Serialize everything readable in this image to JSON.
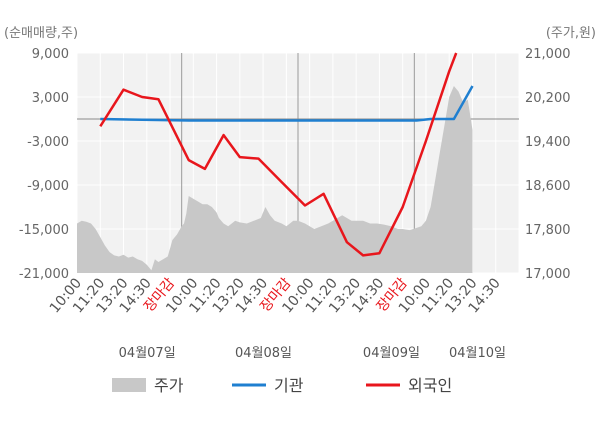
{
  "chart_data": {
    "type": "line",
    "left_axis_label": "(순매매량,주)",
    "right_axis_label": "(주가,원)",
    "left_ticks": [
      "9,000",
      "3,000",
      "-3,000",
      "-9,000",
      "-15,000",
      "-21,000"
    ],
    "left_tick_values": [
      9000,
      3000,
      -3000,
      -9000,
      -15000,
      -21000
    ],
    "right_ticks": [
      "21,000",
      "20,200",
      "19,400",
      "18,600",
      "17,800",
      "17,000"
    ],
    "right_tick_values": [
      21000,
      20200,
      19400,
      18600,
      17800,
      17000
    ],
    "ylim_left": [
      -21000,
      9000
    ],
    "ylim_right": [
      17000,
      21000
    ],
    "x_tick_labels": [
      "10:00",
      "11:20",
      "13:20",
      "14:30",
      "장마감",
      "10:00",
      "11:20",
      "13:20",
      "14:30",
      "장마감",
      "10:00",
      "11:20",
      "13:20",
      "14:30",
      "장마감",
      "10:00",
      "11:20",
      "13:20",
      "14:30"
    ],
    "x_tick_red": [
      false,
      false,
      false,
      false,
      true,
      false,
      false,
      false,
      false,
      true,
      false,
      false,
      false,
      false,
      true,
      false,
      false,
      false,
      false
    ],
    "day_labels": [
      "04월07일",
      "04월08일",
      "04월09일",
      "04월10일"
    ],
    "day_label_positions": [
      4.5,
      9.5,
      15,
      18.7
    ],
    "day_boundaries": [
      4.5,
      9.5,
      14.5
    ],
    "x_max": 19,
    "legend": [
      {
        "name": "주가",
        "color": "#c8c8c8",
        "kind": "area"
      },
      {
        "name": "기관",
        "color": "#1f7fd0",
        "kind": "line"
      },
      {
        "name": "외국인",
        "color": "#e8161c",
        "kind": "line"
      }
    ],
    "series": [
      {
        "name": "주가",
        "axis": "right",
        "color": "#c8c8c8",
        "points": [
          [
            0,
            17900
          ],
          [
            0.2,
            17950
          ],
          [
            0.4,
            17930
          ],
          [
            0.6,
            17900
          ],
          [
            0.8,
            17800
          ],
          [
            1.0,
            17650
          ],
          [
            1.2,
            17500
          ],
          [
            1.4,
            17380
          ],
          [
            1.6,
            17320
          ],
          [
            1.8,
            17300
          ],
          [
            2.0,
            17330
          ],
          [
            2.2,
            17280
          ],
          [
            2.4,
            17300
          ],
          [
            2.6,
            17250
          ],
          [
            2.8,
            17220
          ],
          [
            3.0,
            17150
          ],
          [
            3.2,
            17050
          ],
          [
            3.35,
            17250
          ],
          [
            3.5,
            17200
          ],
          [
            3.7,
            17250
          ],
          [
            3.9,
            17300
          ],
          [
            4.0,
            17450
          ],
          [
            4.1,
            17600
          ],
          [
            4.3,
            17700
          ],
          [
            4.5,
            17850
          ],
          [
            4.6,
            17900
          ],
          [
            4.7,
            18080
          ],
          [
            4.8,
            18400
          ],
          [
            5.0,
            18350
          ],
          [
            5.2,
            18300
          ],
          [
            5.4,
            18250
          ],
          [
            5.6,
            18250
          ],
          [
            5.8,
            18200
          ],
          [
            6.0,
            18100
          ],
          [
            6.1,
            18000
          ],
          [
            6.2,
            17950
          ],
          [
            6.3,
            17900
          ],
          [
            6.5,
            17850
          ],
          [
            6.8,
            17950
          ],
          [
            7.0,
            17920
          ],
          [
            7.3,
            17900
          ],
          [
            7.6,
            17950
          ],
          [
            7.9,
            18000
          ],
          [
            8.1,
            18200
          ],
          [
            8.3,
            18050
          ],
          [
            8.5,
            17950
          ],
          [
            8.8,
            17900
          ],
          [
            9.0,
            17850
          ],
          [
            9.3,
            17950
          ],
          [
            9.5,
            17950
          ],
          [
            9.8,
            17900
          ],
          [
            10.0,
            17850
          ],
          [
            10.2,
            17800
          ],
          [
            10.5,
            17850
          ],
          [
            10.8,
            17900
          ],
          [
            11.0,
            17950
          ],
          [
            11.2,
            18000
          ],
          [
            11.4,
            18050
          ],
          [
            11.6,
            18000
          ],
          [
            11.8,
            17950
          ],
          [
            12.0,
            17950
          ],
          [
            12.3,
            17950
          ],
          [
            12.6,
            17900
          ],
          [
            12.9,
            17900
          ],
          [
            13.2,
            17880
          ],
          [
            13.5,
            17850
          ],
          [
            13.8,
            17800
          ],
          [
            14.0,
            17800
          ],
          [
            14.3,
            17780
          ],
          [
            14.6,
            17820
          ],
          [
            14.8,
            17850
          ],
          [
            15.0,
            17950
          ],
          [
            15.2,
            18200
          ],
          [
            15.4,
            18700
          ],
          [
            15.6,
            19200
          ],
          [
            15.8,
            19700
          ],
          [
            16.0,
            20200
          ],
          [
            16.2,
            20400
          ],
          [
            16.4,
            20300
          ],
          [
            16.6,
            20100
          ],
          [
            16.8,
            20150
          ],
          [
            17.0,
            19600
          ]
        ]
      },
      {
        "name": "기관",
        "axis": "left",
        "color": "#1f7fd0",
        "points": [
          [
            1,
            0
          ],
          [
            4.8,
            -200
          ],
          [
            14.6,
            -200
          ],
          [
            15.2,
            0
          ],
          [
            16.2,
            0
          ],
          [
            17.0,
            4500
          ]
        ]
      },
      {
        "name": "외국인",
        "axis": "left",
        "color": "#e8161c",
        "points": [
          [
            1,
            -1000
          ],
          [
            2,
            4000
          ],
          [
            2.8,
            3000
          ],
          [
            3.5,
            2700
          ],
          [
            4.0,
            -500
          ],
          [
            4.8,
            -5600
          ],
          [
            5.5,
            -6800
          ],
          [
            6.3,
            -2200
          ],
          [
            7.0,
            -5200
          ],
          [
            7.8,
            -5400
          ],
          [
            8.8,
            -8600
          ],
          [
            9.8,
            -11800
          ],
          [
            10.6,
            -10200
          ],
          [
            11.6,
            -16800
          ],
          [
            12.3,
            -18600
          ],
          [
            13.0,
            -18300
          ],
          [
            14.0,
            -12000
          ],
          [
            15.0,
            -3000
          ],
          [
            16.0,
            6500
          ],
          [
            16.3,
            9000
          ]
        ]
      }
    ]
  }
}
